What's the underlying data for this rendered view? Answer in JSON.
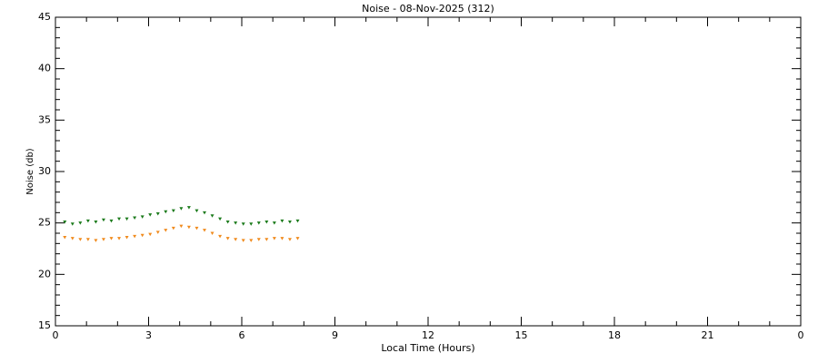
{
  "chart_data": {
    "type": "scatter",
    "title": "Noise - 08-Nov-2025 (312)",
    "x_label": "Local Time (Hours)",
    "y_label": "Noise (db)",
    "x": [
      0.3,
      0.55,
      0.8,
      1.05,
      1.3,
      1.55,
      1.8,
      2.05,
      2.3,
      2.55,
      2.8,
      3.05,
      3.3,
      3.55,
      3.8,
      4.05,
      4.3,
      4.55,
      4.8,
      5.05,
      5.3,
      5.55,
      5.8,
      6.05,
      6.3,
      6.55,
      6.8,
      7.05,
      7.3,
      7.55,
      7.8
    ],
    "series": [
      {
        "color": "#1a7a1a",
        "values": [
          25.1,
          24.9,
          25.0,
          25.2,
          25.1,
          25.3,
          25.2,
          25.4,
          25.4,
          25.5,
          25.6,
          25.8,
          25.9,
          26.1,
          26.2,
          26.4,
          26.5,
          26.2,
          26.0,
          25.7,
          25.4,
          25.1,
          25.0,
          24.9,
          24.9,
          25.0,
          25.1,
          25.0,
          25.2,
          25.1,
          25.2
        ]
      },
      {
        "color": "#f08a1c",
        "values": [
          23.6,
          23.5,
          23.4,
          23.4,
          23.3,
          23.4,
          23.5,
          23.5,
          23.6,
          23.7,
          23.8,
          23.9,
          24.1,
          24.3,
          24.5,
          24.7,
          24.6,
          24.5,
          24.3,
          24.0,
          23.7,
          23.5,
          23.4,
          23.3,
          23.3,
          23.4,
          23.4,
          23.5,
          23.5,
          23.4,
          23.5
        ]
      }
    ],
    "xlim": [
      0,
      24
    ],
    "xticks": [
      0,
      3,
      6,
      9,
      12,
      15,
      18,
      21,
      {
        "value": 24,
        "label": "0"
      }
    ],
    "ylim": [
      15,
      45
    ],
    "yticks": [
      15,
      20,
      25,
      30,
      35,
      40,
      45
    ]
  }
}
